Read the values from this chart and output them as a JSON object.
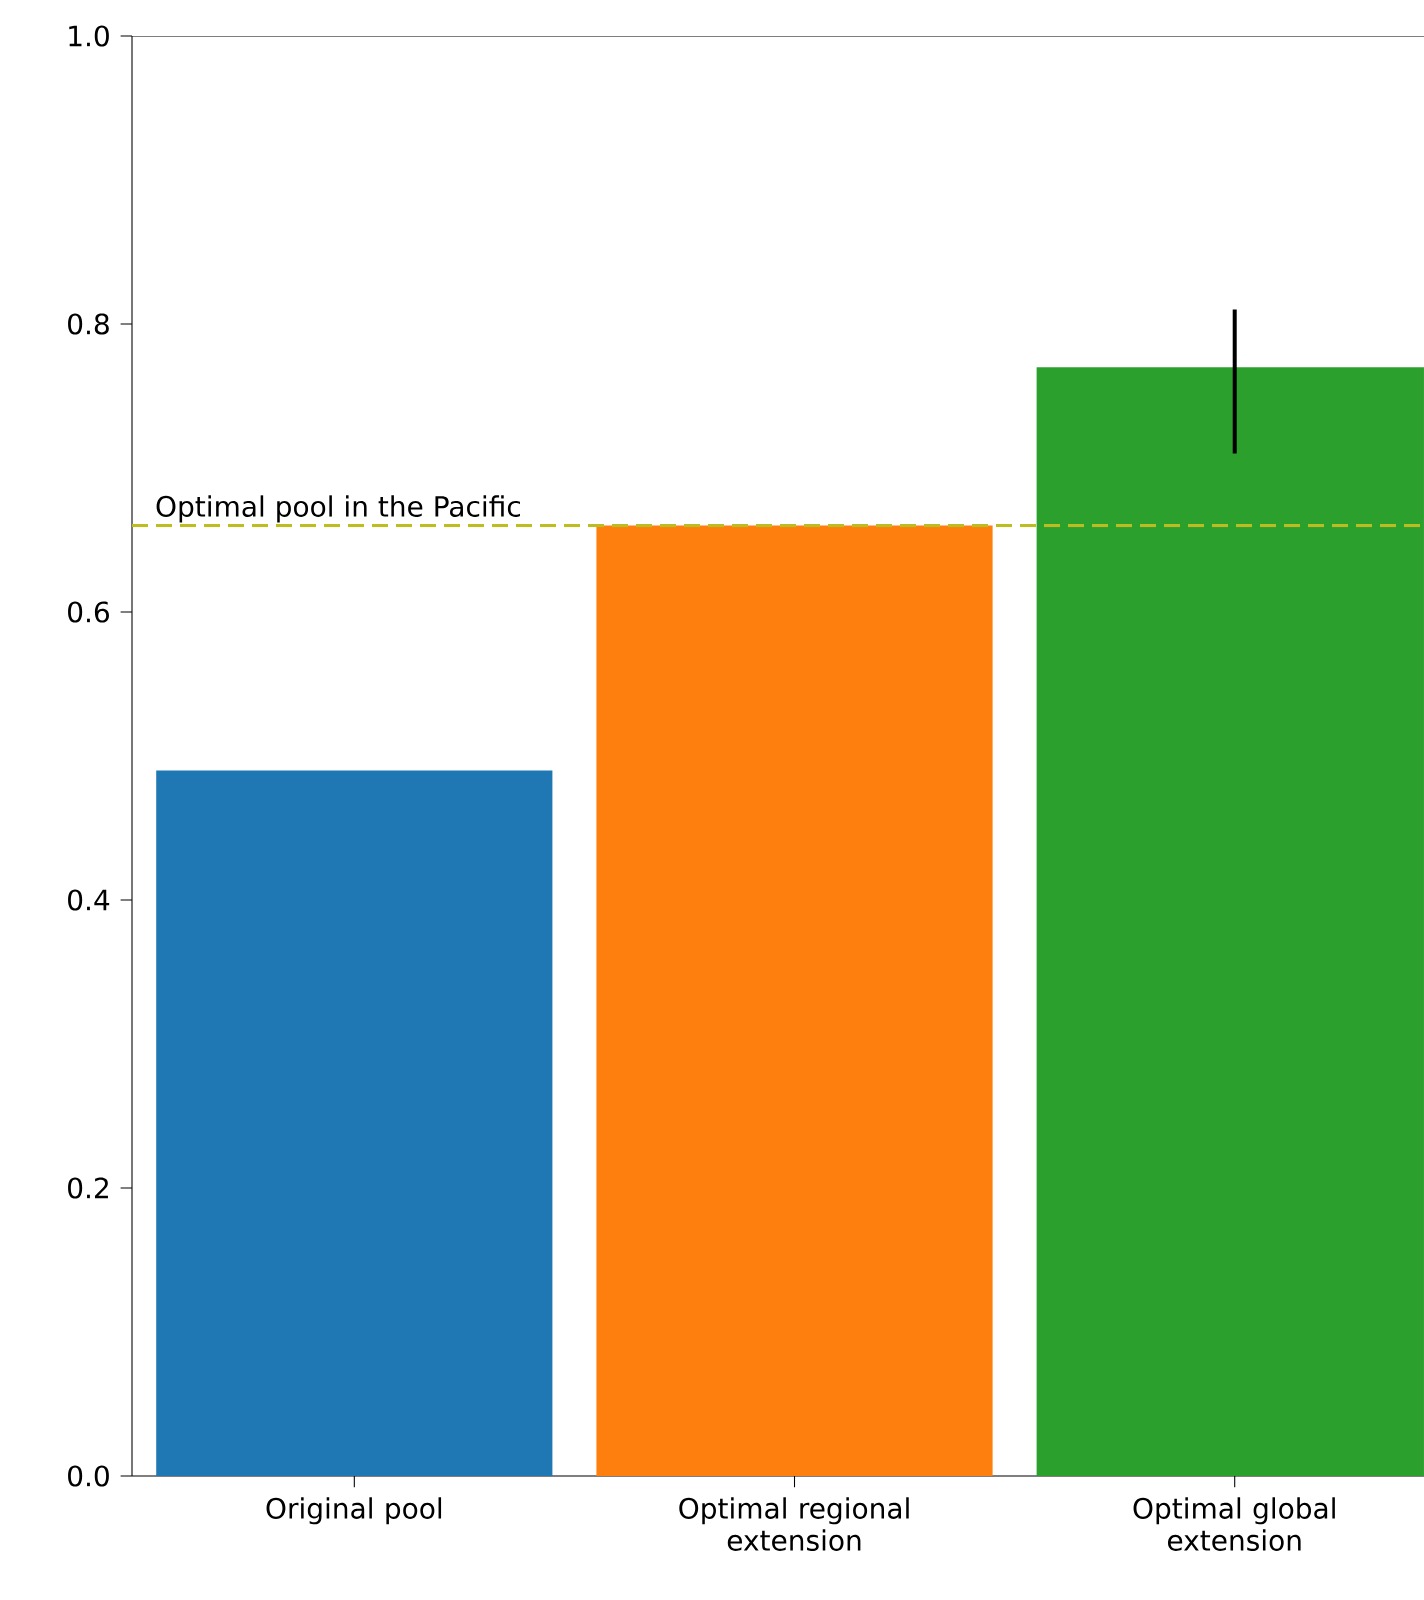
{
  "chart_data": {
    "type": "bar",
    "categories": [
      "Original pool",
      "Optimal regional extension",
      "Optimal global extension"
    ],
    "values": [
      0.49,
      0.66,
      0.77
    ],
    "colors": [
      "#1f77b4",
      "#ff7f0e",
      "#2ca02c"
    ],
    "errors": [
      null,
      null,
      [
        0.71,
        0.81
      ]
    ],
    "ylim": [
      0,
      1
    ],
    "yticks": [
      {
        "value": 0,
        "label": "0.0"
      },
      0.2,
      0.4,
      0.6,
      0.8,
      {
        "value": 1,
        "label": "1.0"
      }
    ],
    "ref_lines": [
      {
        "axis": "y",
        "value": 0.66,
        "label": "Optimal pool in the Pacific",
        "color": "#bcbd22",
        "line_style": "dashed"
      }
    ]
  }
}
